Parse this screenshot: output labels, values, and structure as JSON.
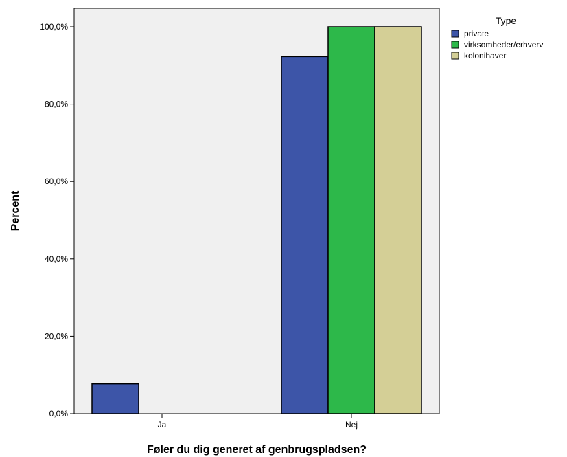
{
  "chart_data": {
    "type": "bar",
    "title": "",
    "xlabel": "Føler du dig generet af genbrugspladsen?",
    "ylabel": "Percent",
    "categories": [
      "Ja",
      "Nej"
    ],
    "ylim": [
      0,
      100
    ],
    "yticks": [
      0,
      20,
      40,
      60,
      80,
      100
    ],
    "ytick_labels": [
      "0,0%",
      "20,0%",
      "40,0%",
      "60,0%",
      "80,0%",
      "100,0%"
    ],
    "series": [
      {
        "name": "private",
        "values": [
          7.7,
          92.3
        ],
        "color": "#3d55a8"
      },
      {
        "name": "virksomheder/erhverv",
        "values": [
          0,
          100
        ],
        "color": "#2db84a"
      },
      {
        "name": "kolonihaver",
        "values": [
          0,
          100
        ],
        "color": "#d4cf96"
      }
    ],
    "legend": {
      "title": "Type",
      "placement": "top-right, outside plot"
    },
    "plot_background": "#f0f0f0",
    "grid": false
  }
}
